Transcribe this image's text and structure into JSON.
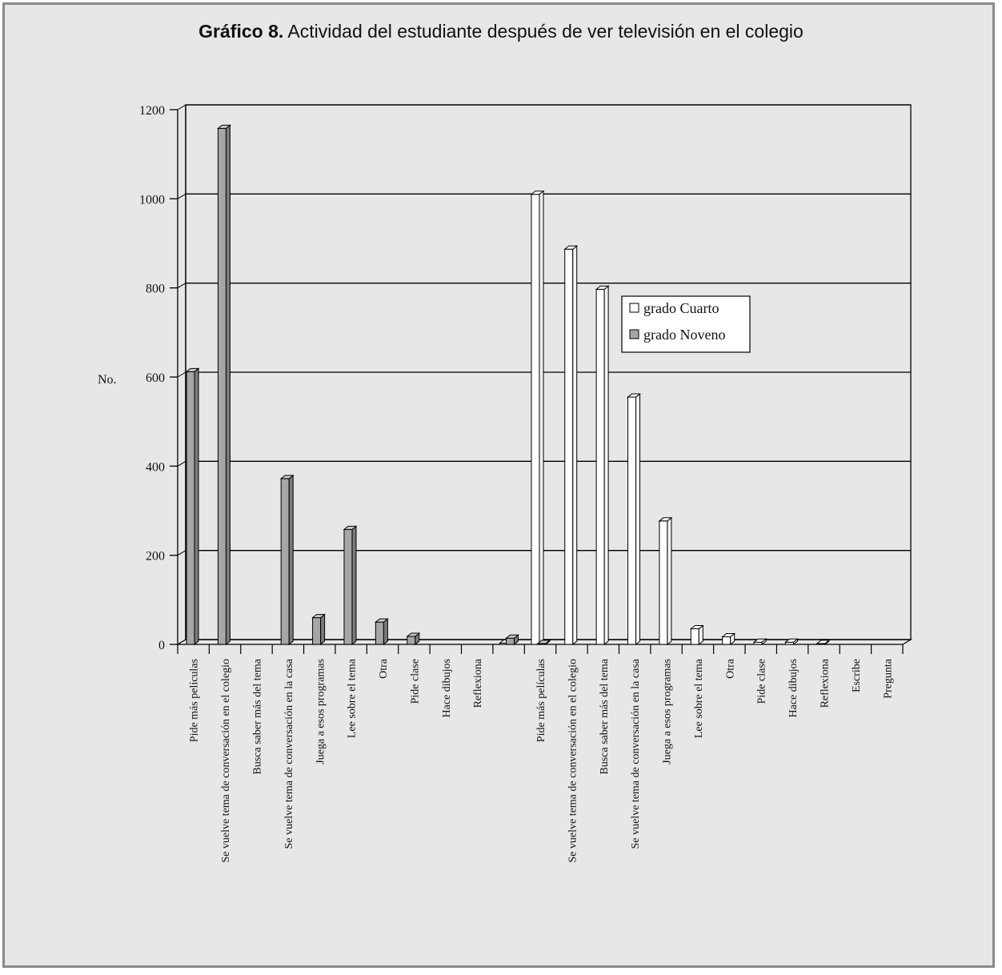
{
  "chart_data": {
    "type": "bar",
    "title_prefix": "Gráfico 8.",
    "title": "Actividad del estudiante después de ver televisión en el colegio",
    "ylabel": "No.",
    "xlabel": "",
    "ylim": [
      0,
      1200
    ],
    "yticks": [
      0,
      200,
      400,
      600,
      800,
      1000,
      1200
    ],
    "grid": true,
    "legend_position": "center-right",
    "categories": [
      "Pide más películas",
      "Se vuelve tema de conversación en el colegio",
      "Busca saber más del tema",
      "Se vuelve tema de conversación en la casa",
      "Juega a esos programas",
      "Lee sobre el tema",
      "Otra",
      "Pide clase",
      "Hace dibujos",
      "Reflexiona",
      "",
      "Pide más películas",
      "Se vuelve tema de conversación en el colegio",
      "Busca saber más del tema",
      "Se vuelve tema de conversación en la casa",
      "Juega a esos programas",
      "Lee sobre el tema",
      "Otra",
      "Pide clase",
      "Hace dibujos",
      "Reflexiona",
      "Escribe",
      "Pregunta"
    ],
    "series": [
      {
        "name": "grado Cuarto",
        "color": "#ffffff",
        "values": [
          0,
          0,
          0,
          0,
          0,
          0,
          0,
          0,
          0,
          0,
          3,
          1010,
          887,
          797,
          555,
          277,
          35,
          17,
          5,
          5,
          2,
          0,
          0
        ]
      },
      {
        "name": "grado Noveno",
        "color": "#a6a6a6",
        "values": [
          612,
          1158,
          0,
          372,
          60,
          258,
          50,
          18,
          0,
          0,
          14,
          2,
          0,
          0,
          0,
          0,
          0,
          0,
          0,
          0,
          0,
          0,
          0
        ]
      }
    ]
  }
}
